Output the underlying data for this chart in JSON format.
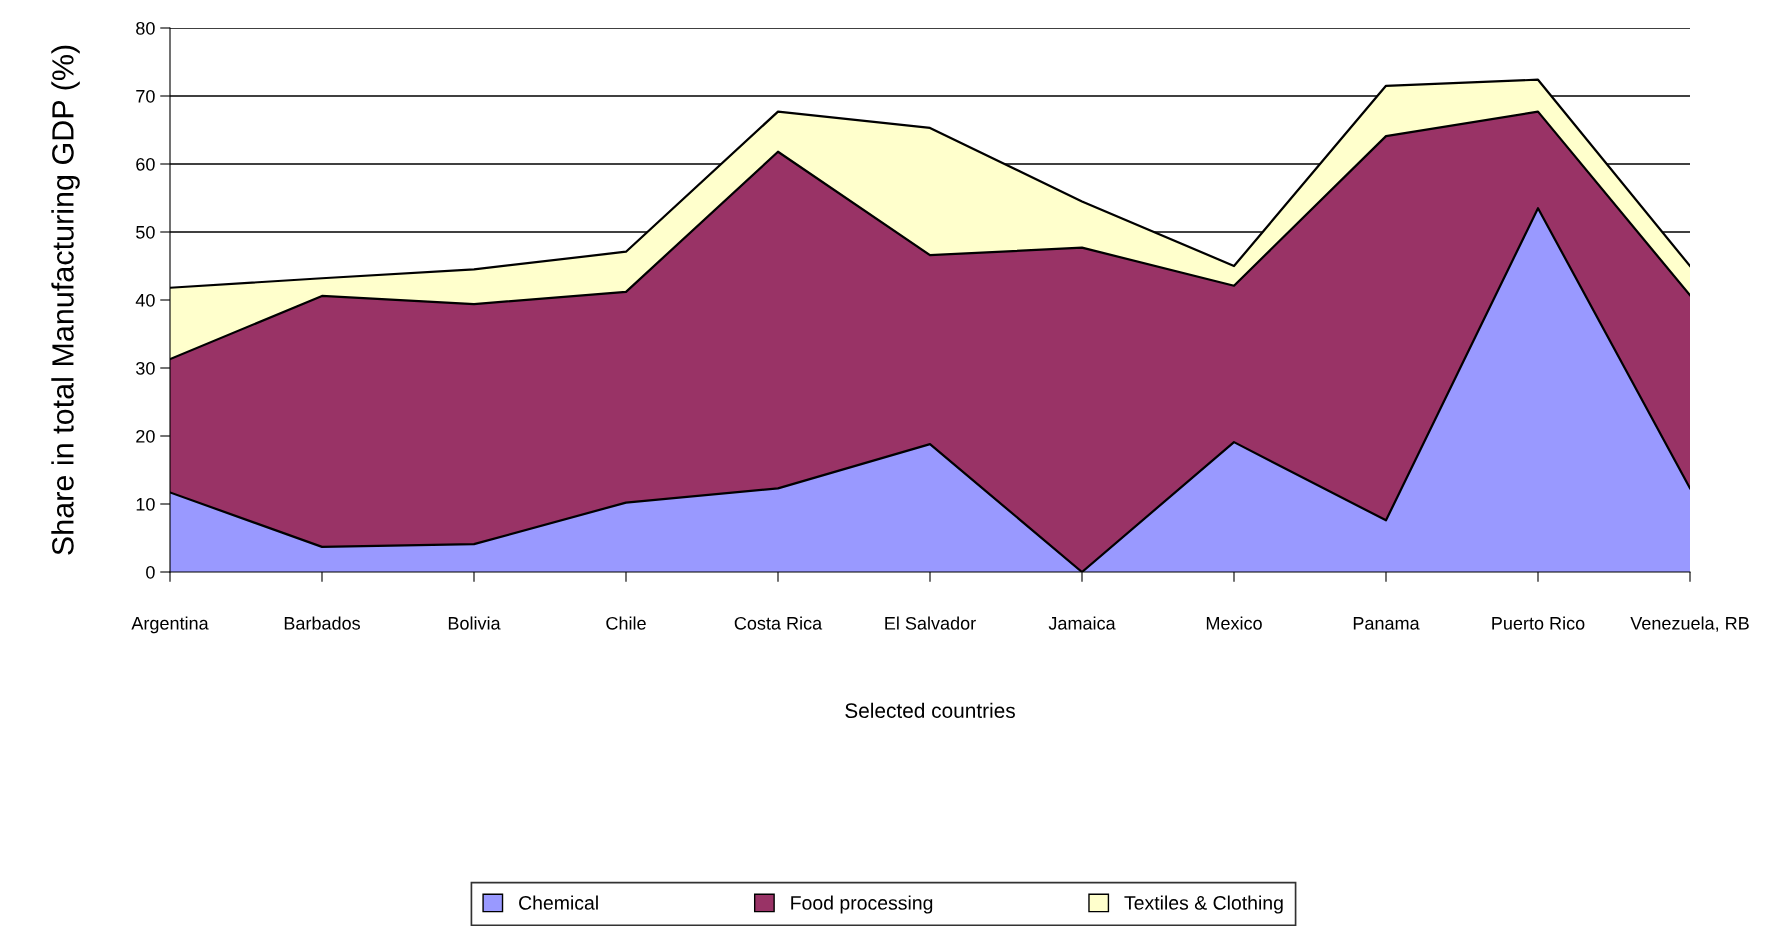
{
  "chart_data": {
    "type": "area",
    "stacked": true,
    "xlabel": "Selected countries",
    "ylabel": "Share in total Manufacturing GDP (%)",
    "categories": [
      "Argentina",
      "Barbados",
      "Bolivia",
      "Chile",
      "Costa Rica",
      "El Salvador",
      "Jamaica",
      "Mexico",
      "Panama",
      "Puerto Rico",
      "Venezuela, RB"
    ],
    "series": [
      {
        "name": "Chemical",
        "color": "#9999ff",
        "values": [
          11.7,
          3.7,
          4.1,
          10.2,
          12.3,
          18.8,
          0,
          19.1,
          7.6,
          53.5,
          12.3
        ]
      },
      {
        "name": "Food processing",
        "color": "#993366",
        "values": [
          19.6,
          36.9,
          35.3,
          31.0,
          49.5,
          27.8,
          47.7,
          23.0,
          56.5,
          14.2,
          28.4
        ]
      },
      {
        "name": "Textiles & Clothing",
        "color": "#ffffcc",
        "values": [
          10.5,
          2.6,
          5.1,
          5.9,
          5.9,
          18.7,
          6.8,
          2.9,
          7.4,
          4.7,
          4.3
        ]
      }
    ],
    "ylim": [
      0,
      80
    ],
    "yticks": [
      0,
      10,
      20,
      30,
      40,
      50,
      60,
      70,
      80
    ],
    "grid": "y",
    "legend": "bottom"
  }
}
